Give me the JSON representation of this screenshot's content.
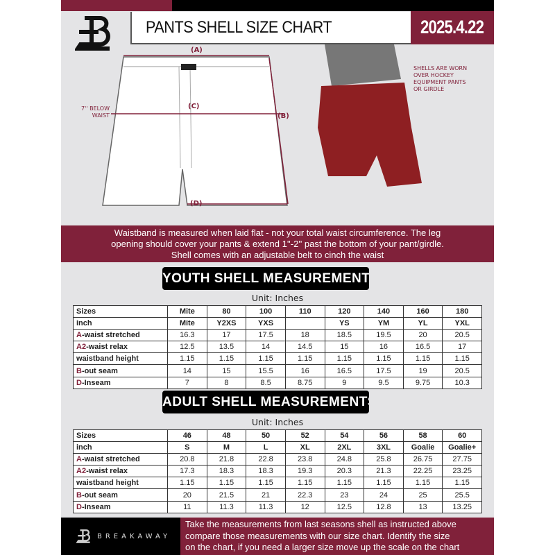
{
  "header": {
    "title": "PANTS SHELL SIZE CHART",
    "date": "2025.4.22"
  },
  "diagram": {
    "label_a": "(A)",
    "label_b": "(B)",
    "label_c": "(C)",
    "label_d": "(D)",
    "waist_note": "7'' BELOW WAIST",
    "shell_note": "SHELLS ARE WORN OVER HOCKEY EQUIPMENT PANTS OR GIRDLE"
  },
  "banner": {
    "line1": "Waistband is measured when laid flat - not your total waist circumference. The leg",
    "line2": "opening should cover your pants & extend 1''-2'' past the bottom of your pant/girdle.",
    "line3": "Shell comes with an adjustable belt to cinch the waist"
  },
  "youth": {
    "title": "YOUTH SHELL MEASUREMENTS",
    "unit": "Unit: Inches",
    "rows": [
      {
        "prefix": "",
        "label": "Sizes",
        "cells": [
          "Mite",
          "80",
          "100",
          "110",
          "120",
          "140",
          "160",
          "180"
        ]
      },
      {
        "prefix": "",
        "label": "inch",
        "cells": [
          "Mite",
          "Y2XS",
          "YXS",
          "",
          "YS",
          "YM",
          "YL",
          "YXL"
        ]
      },
      {
        "prefix": "A",
        "label": "-waist stretched",
        "cells": [
          "16.3",
          "17",
          "17.5",
          "18",
          "18.5",
          "19.5",
          "20",
          "20.5"
        ]
      },
      {
        "prefix": "A2",
        "label": "-waist relax",
        "cells": [
          "12.5",
          "13.5",
          "14",
          "14.5",
          "15",
          "16",
          "16.5",
          "17"
        ]
      },
      {
        "prefix": "",
        "label": "waistband height",
        "cells": [
          "1.15",
          "1.15",
          "1.15",
          "1.15",
          "1.15",
          "1.15",
          "1.15",
          "1.15"
        ]
      },
      {
        "prefix": "B",
        "label": "-out seam",
        "cells": [
          "14",
          "15",
          "15.5",
          "16",
          "16.5",
          "17.5",
          "19",
          "20.5"
        ]
      },
      {
        "prefix": "D",
        "label": "-Inseam",
        "cells": [
          "7",
          "8",
          "8.5",
          "8.75",
          "9",
          "9.5",
          "9.75",
          "10.3"
        ]
      }
    ]
  },
  "adult": {
    "title": "ADULT SHELL MEASUREMENTS",
    "unit": "Unit: Inches",
    "rows": [
      {
        "prefix": "",
        "label": "Sizes",
        "cells": [
          "46",
          "48",
          "50",
          "52",
          "54",
          "56",
          "58",
          "60"
        ]
      },
      {
        "prefix": "",
        "label": "inch",
        "cells": [
          "S",
          "M",
          "L",
          "XL",
          "2XL",
          "3XL",
          "Goalie",
          "Goalie+"
        ]
      },
      {
        "prefix": "A",
        "label": "-waist stretched",
        "cells": [
          "20.8",
          "21.8",
          "22.8",
          "23.8",
          "24.8",
          "25.8",
          "26.75",
          "27.75"
        ]
      },
      {
        "prefix": "A2",
        "label": "-waist relax",
        "cells": [
          "17.3",
          "18.3",
          "18.3",
          "19.3",
          "20.3",
          "21.3",
          "22.25",
          "23.25"
        ]
      },
      {
        "prefix": "",
        "label": "waistband height",
        "cells": [
          "1.15",
          "1.15",
          "1.15",
          "1.15",
          "1.15",
          "1.15",
          "1.15",
          "1.15"
        ]
      },
      {
        "prefix": "B",
        "label": "-out seam",
        "cells": [
          "20",
          "21.5",
          "21",
          "22.3",
          "23",
          "24",
          "25",
          "25.5"
        ]
      },
      {
        "prefix": "D",
        "label": "-Inseam",
        "cells": [
          "11",
          "11.3",
          "11.3",
          "12",
          "12.5",
          "12.8",
          "13",
          "13.25"
        ]
      }
    ]
  },
  "footer": {
    "brand": "BREAKAWAY",
    "line1": "Take the measurements from last seasons shell as instructed above",
    "line2": "compare those measurements  with our size chart. Identify the size",
    "line3": "on the chart, if you need a larger size move up the scale on the chart"
  },
  "colors": {
    "accent": "#80213a",
    "dark": "#000000",
    "background": "#e4e4e6"
  }
}
